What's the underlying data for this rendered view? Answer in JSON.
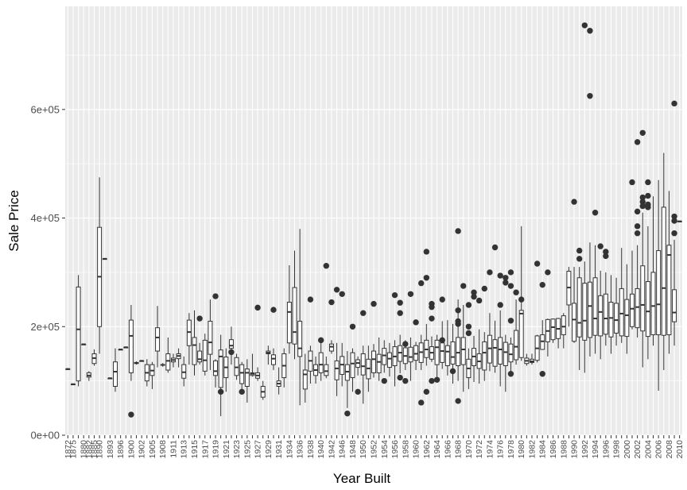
{
  "chart_data": {
    "type": "boxplot",
    "xlabel": "Year Built",
    "ylabel": "Sale Price",
    "ylim": [
      0,
      790000
    ],
    "y_ticks": [
      0,
      200000,
      400000,
      600000
    ],
    "y_tick_labels": [
      "0e+00",
      "2e+05",
      "4e+05",
      "6e+05"
    ],
    "grid": true,
    "background": "#ebebeb",
    "colors": {
      "panel": "#ebebeb",
      "grid": "#ffffff",
      "box": "#333333",
      "outlier": "#333333"
    },
    "years": [
      1872,
      1875,
      1879,
      1880,
      1882,
      1885,
      1890,
      1892,
      1893,
      1895,
      1896,
      1898,
      1900,
      1901,
      1902,
      1904,
      1905,
      1906,
      1908,
      1910,
      1911,
      1912,
      1913,
      1914,
      1915,
      1916,
      1917,
      1918,
      1919,
      1920,
      1921,
      1922,
      1923,
      1924,
      1925,
      1926,
      1927,
      1928,
      1929,
      1930,
      1931,
      1932,
      1934,
      1935,
      1936,
      1937,
      1938,
      1939,
      1940,
      1941,
      1942,
      1945,
      1946,
      1947,
      1948,
      1949,
      1950,
      1951,
      1952,
      1953,
      1954,
      1955,
      1956,
      1957,
      1958,
      1959,
      1960,
      1961,
      1962,
      1963,
      1964,
      1965,
      1966,
      1967,
      1968,
      1969,
      1970,
      1971,
      1972,
      1973,
      1974,
      1975,
      1976,
      1977,
      1978,
      1979,
      1980,
      1981,
      1982,
      1983,
      1984,
      1985,
      1986,
      1987,
      1988,
      1989,
      1990,
      1991,
      1992,
      1993,
      1994,
      1995,
      1996,
      1997,
      1998,
      1999,
      2000,
      2001,
      2002,
      2003,
      2004,
      2005,
      2006,
      2007,
      2008,
      2009,
      2010
    ],
    "x_tick_labels": [
      "1872",
      "1875",
      "1880",
      "1882",
      "1885",
      "1890",
      "1893",
      "1896",
      "1900",
      "1902",
      "1905",
      "1908",
      "1911",
      "1913",
      "1915",
      "1917",
      "1919",
      "1921",
      "1923",
      "1925",
      "1927",
      "1929",
      "1931",
      "1934",
      "1936",
      "1938",
      "1940",
      "1942",
      "1946",
      "1948",
      "1950",
      "1952",
      "1954",
      "1956",
      "1958",
      "1960",
      "1962",
      "1964",
      "1966",
      "1968",
      "1970",
      "1972",
      "1974",
      "1976",
      "1978",
      "1980",
      "1982",
      "1984",
      "1986",
      "1988",
      "1990",
      "1992",
      "1994",
      "1996",
      "1998",
      "2000",
      "2002",
      "2004",
      "2006",
      "2008",
      "2010"
    ],
    "q1": [
      122000,
      94000,
      100000,
      167500,
      107000,
      132000,
      200000,
      325000,
      105000,
      90000,
      158000,
      162000,
      115000,
      132000,
      137000,
      100000,
      110000,
      155000,
      129000,
      120000,
      135000,
      141000,
      105000,
      165000,
      130000,
      135000,
      118000,
      149000,
      110000,
      88000,
      106000,
      160000,
      110000,
      95000,
      90000,
      110000,
      105000,
      70000,
      150000,
      130000,
      90000,
      106000,
      170000,
      168000,
      145000,
      85000,
      118000,
      110000,
      115000,
      110000,
      155000,
      102000,
      112000,
      101000,
      106000,
      125000,
      111000,
      104000,
      115000,
      115000,
      130000,
      125000,
      128000,
      136000,
      132000,
      135000,
      138000,
      134000,
      143000,
      140000,
      130000,
      134000,
      128000,
      131000,
      128000,
      130000,
      106000,
      128000,
      123000,
      120000,
      133000,
      127000,
      131000,
      128000,
      135000,
      139000,
      143000,
      132000,
      134000,
      138000,
      158000,
      172000,
      176000,
      178000,
      185000,
      240000,
      173000,
      181000,
      175000,
      180000,
      184000,
      183000,
      186000,
      181000,
      188000,
      183000,
      182000,
      200000,
      198000,
      192000,
      182000,
      185000,
      185000,
      184000,
      185000,
      209000,
      394000
    ],
    "q3": [
      122000,
      94000,
      273000,
      167500,
      115000,
      150000,
      383000,
      325000,
      105000,
      135000,
      158000,
      162000,
      212000,
      134000,
      137000,
      130000,
      130000,
      198000,
      130000,
      150000,
      142000,
      150000,
      130000,
      212000,
      180000,
      155000,
      175000,
      210000,
      137000,
      157000,
      144000,
      176000,
      143000,
      130000,
      122000,
      115000,
      115000,
      90000,
      155000,
      148000,
      100000,
      150000,
      245000,
      272000,
      210000,
      120000,
      155000,
      130000,
      152000,
      130000,
      168000,
      137000,
      145000,
      130000,
      152000,
      139000,
      150000,
      140000,
      155000,
      149000,
      160000,
      152000,
      163000,
      165000,
      161000,
      162000,
      165000,
      170000,
      175000,
      163000,
      175000,
      170000,
      165000,
      172000,
      180000,
      180000,
      140000,
      160000,
      150000,
      172000,
      184000,
      176000,
      180000,
      171000,
      168000,
      193000,
      230000,
      142000,
      140000,
      183000,
      185000,
      213000,
      214000,
      215000,
      220000,
      302000,
      243000,
      290000,
      280000,
      282000,
      290000,
      257000,
      260000,
      245000,
      243000,
      270000,
      250000,
      260000,
      270000,
      312000,
      283000,
      300000,
      340000,
      420000,
      350000,
      268000,
      394000
    ],
    "median": [
      122000,
      94000,
      195000,
      167500,
      110000,
      142000,
      292000,
      325000,
      105000,
      117000,
      158000,
      162000,
      183000,
      133000,
      137000,
      115000,
      119000,
      180000,
      129500,
      137000,
      138500,
      146000,
      116000,
      190000,
      166000,
      140000,
      138000,
      171000,
      118000,
      145000,
      125000,
      165000,
      125000,
      115000,
      115000,
      113000,
      110000,
      80000,
      152000,
      141000,
      95000,
      128000,
      227000,
      190000,
      160000,
      112000,
      137000,
      120000,
      130000,
      118000,
      163000,
      123000,
      130000,
      117000,
      132000,
      133000,
      127000,
      123000,
      140000,
      135000,
      147000,
      141000,
      145000,
      152000,
      146000,
      144000,
      150000,
      153000,
      158000,
      152000,
      162000,
      155000,
      154000,
      144000,
      152000,
      158000,
      123000,
      145000,
      136000,
      152000,
      160000,
      161000,
      158000,
      153000,
      149000,
      163000,
      224000,
      137000,
      136000,
      160000,
      173000,
      192000,
      199000,
      196000,
      200000,
      272000,
      213000,
      207000,
      211000,
      238000,
      215000,
      227000,
      215000,
      216000,
      212000,
      224000,
      221000,
      233000,
      236000,
      240000,
      228000,
      238000,
      241000,
      271000,
      332000,
      226000,
      394000
    ],
    "wlo": [
      122000,
      94000,
      90000,
      167500,
      100000,
      128000,
      150000,
      325000,
      105000,
      80000,
      158000,
      162000,
      100000,
      130000,
      137000,
      90000,
      85000,
      125000,
      126000,
      115000,
      125000,
      125000,
      90000,
      130000,
      110000,
      130000,
      110000,
      120000,
      88000,
      35000,
      80000,
      130000,
      102000,
      80000,
      60000,
      108000,
      100000,
      65000,
      130000,
      120000,
      75000,
      88000,
      150000,
      140000,
      55000,
      60000,
      95000,
      95000,
      100000,
      105000,
      150000,
      72000,
      90000,
      50000,
      80000,
      110000,
      58000,
      80000,
      106000,
      100000,
      115000,
      108000,
      90000,
      114000,
      120000,
      100000,
      120000,
      120000,
      128000,
      135000,
      100000,
      122000,
      110000,
      95000,
      100000,
      80000,
      85000,
      98000,
      95000,
      100000,
      118000,
      115000,
      90000,
      80000,
      118000,
      130000,
      137000,
      128000,
      130000,
      134000,
      157000,
      145000,
      170000,
      160000,
      160000,
      200000,
      170000,
      120000,
      115000,
      145000,
      150000,
      140000,
      165000,
      150000,
      165000,
      170000,
      150000,
      195000,
      180000,
      125000,
      140000,
      165000,
      82000,
      120000,
      150000,
      165000,
      394000
    ],
    "whi": [
      122000,
      94000,
      295000,
      167500,
      118000,
      158000,
      475000,
      325000,
      105000,
      160000,
      158000,
      162000,
      240000,
      136000,
      137000,
      140000,
      135000,
      238000,
      133000,
      180000,
      150000,
      160000,
      145000,
      225000,
      230000,
      170000,
      187000,
      250000,
      140000,
      185000,
      160000,
      200000,
      150000,
      135000,
      140000,
      150000,
      125000,
      100000,
      165000,
      160000,
      125000,
      160000,
      313000,
      340000,
      380000,
      150000,
      165000,
      145000,
      175000,
      145000,
      175000,
      170000,
      170000,
      155000,
      160000,
      145000,
      165000,
      165000,
      168000,
      180000,
      175000,
      170000,
      175000,
      185000,
      175000,
      180000,
      172000,
      185000,
      205000,
      182000,
      185000,
      210000,
      212000,
      205000,
      250000,
      240000,
      160000,
      183000,
      195000,
      190000,
      225000,
      211000,
      230000,
      185000,
      180000,
      250000,
      385000,
      150000,
      150000,
      185000,
      212000,
      215000,
      215000,
      216000,
      225000,
      310000,
      310000,
      310000,
      320000,
      355000,
      350000,
      303000,
      300000,
      295000,
      290000,
      345000,
      315000,
      340000,
      350000,
      410000,
      385000,
      440000,
      470000,
      520000,
      450000,
      360000,
      394000
    ],
    "outliers": [
      [
        1900,
        38000
      ],
      [
        1916,
        215000
      ],
      [
        1919,
        256000
      ],
      [
        1920,
        80000
      ],
      [
        1922,
        153000
      ],
      [
        1924,
        80000
      ],
      [
        1927,
        235000
      ],
      [
        1930,
        231000
      ],
      [
        1938,
        250000
      ],
      [
        1940,
        175000
      ],
      [
        1941,
        312000
      ],
      [
        1942,
        245000
      ],
      [
        1945,
        268000
      ],
      [
        1946,
        260000
      ],
      [
        1947,
        40000
      ],
      [
        1948,
        200000
      ],
      [
        1949,
        80000
      ],
      [
        1950,
        225000
      ],
      [
        1952,
        242000
      ],
      [
        1954,
        100000
      ],
      [
        1956,
        258000
      ],
      [
        1957,
        244000
      ],
      [
        1957,
        225000
      ],
      [
        1957,
        106000
      ],
      [
        1958,
        168000
      ],
      [
        1958,
        100000
      ],
      [
        1959,
        260000
      ],
      [
        1960,
        208000
      ],
      [
        1961,
        280000
      ],
      [
        1961,
        60000
      ],
      [
        1962,
        338000
      ],
      [
        1962,
        290000
      ],
      [
        1962,
        80000
      ],
      [
        1963,
        242000
      ],
      [
        1963,
        236000
      ],
      [
        1963,
        215000
      ],
      [
        1963,
        100000
      ],
      [
        1964,
        102000
      ],
      [
        1965,
        250000
      ],
      [
        1965,
        175000
      ],
      [
        1967,
        118000
      ],
      [
        1968,
        376000
      ],
      [
        1968,
        210000
      ],
      [
        1968,
        205000
      ],
      [
        1968,
        230000
      ],
      [
        1968,
        63000
      ],
      [
        1969,
        275000
      ],
      [
        1970,
        240000
      ],
      [
        1970,
        200000
      ],
      [
        1970,
        188000
      ],
      [
        1971,
        255000
      ],
      [
        1971,
        263000
      ],
      [
        1972,
        248000
      ],
      [
        1973,
        270000
      ],
      [
        1974,
        300000
      ],
      [
        1975,
        346000
      ],
      [
        1976,
        240000
      ],
      [
        1976,
        294000
      ],
      [
        1977,
        281000
      ],
      [
        1977,
        290000
      ],
      [
        1978,
        300000
      ],
      [
        1978,
        275000
      ],
      [
        1978,
        211000
      ],
      [
        1978,
        113000
      ],
      [
        1979,
        263000
      ],
      [
        1980,
        250000
      ],
      [
        1983,
        316000
      ],
      [
        1984,
        113000
      ],
      [
        1984,
        277000
      ],
      [
        1985,
        300000
      ],
      [
        1990,
        430000
      ],
      [
        1991,
        340000
      ],
      [
        1991,
        325000
      ],
      [
        1992,
        755000
      ],
      [
        1993,
        625000
      ],
      [
        1993,
        745000
      ],
      [
        1994,
        410000
      ],
      [
        1995,
        348000
      ],
      [
        1996,
        338000
      ],
      [
        1996,
        330000
      ],
      [
        2001,
        466000
      ],
      [
        2002,
        540000
      ],
      [
        2002,
        412000
      ],
      [
        2002,
        385000
      ],
      [
        2002,
        372000
      ],
      [
        2003,
        557000
      ],
      [
        2003,
        438000
      ],
      [
        2003,
        430000
      ],
      [
        2003,
        422000
      ],
      [
        2004,
        466000
      ],
      [
        2004,
        441000
      ],
      [
        2004,
        425000
      ],
      [
        2004,
        420000
      ],
      [
        2009,
        611000
      ],
      [
        2009,
        403000
      ],
      [
        2009,
        395000
      ],
      [
        2009,
        372000
      ]
    ]
  }
}
